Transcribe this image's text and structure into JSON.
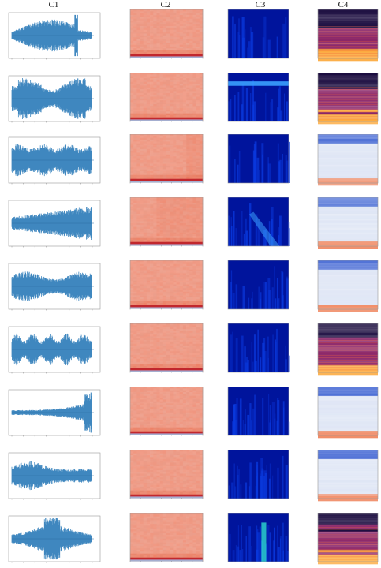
{
  "columns": [
    "C1",
    "C2",
    "C3",
    "C4"
  ],
  "rows": [
    {
      "c4": "magma"
    },
    {
      "c4": "magma"
    },
    {
      "c4": "coolwarm"
    },
    {
      "c4": "coolwarm"
    },
    {
      "c4": "coolwarm"
    },
    {
      "c4": "magma"
    },
    {
      "c4": "coolwarm"
    },
    {
      "c4": "coolwarm"
    },
    {
      "c4": "magma"
    }
  ],
  "colors": {
    "waveform": "#3f87bf",
    "c2_base": "#f2a083",
    "c2_band": "#c1272d",
    "c2_strip": "#a9b6e8",
    "c3_base": "#00149c",
    "c3_light": "#3aa0ff",
    "magma_dark": "#1b0c3f",
    "magma_mid": "#8a2467",
    "magma_hot": "#fca636",
    "coolwarm_top": "#4d6fd6",
    "coolwarm_mid": "#dfe6f5",
    "coolwarm_bottom": "#f08c67"
  }
}
